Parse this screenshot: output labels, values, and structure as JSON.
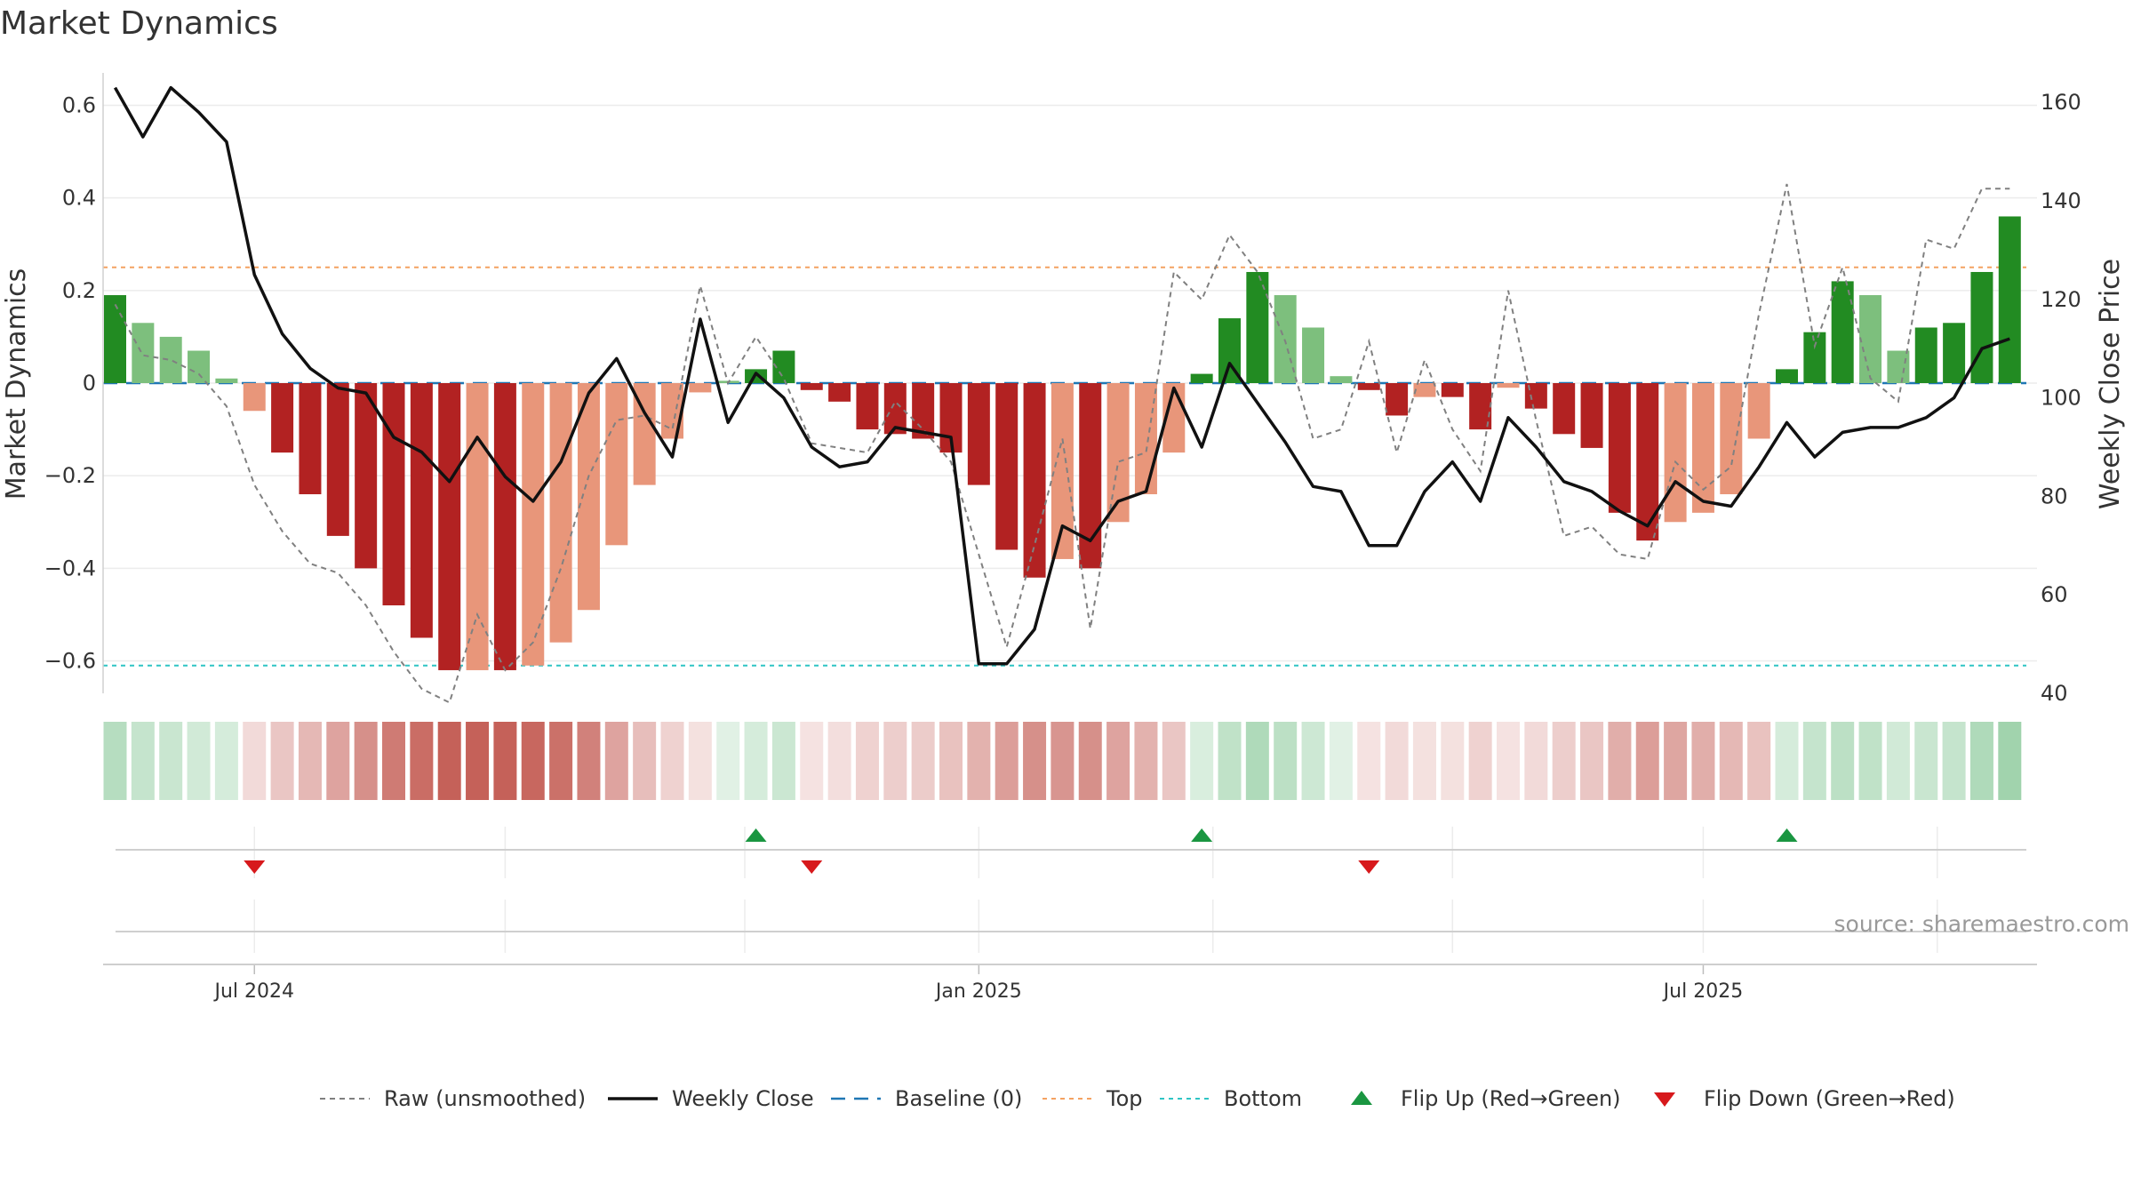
{
  "title": "Market Dynamics",
  "source": "source: sharemaestro.com",
  "colors": {
    "strong_green": "#228b22",
    "light_green": "#7dbf7d",
    "strong_red": "#b22222",
    "light_red": "#e8967a",
    "top_line": "#f4a261",
    "bottom_line": "#2ec4c4",
    "baseline": "#1f77b4",
    "weekly_close": "#111111",
    "raw": "#808080",
    "flip_up": "#1a9641",
    "flip_down": "#d7191c"
  },
  "chart_data": {
    "type": "bar",
    "title": "Market Dynamics",
    "ylabel": "Market Dynamics",
    "y2label": "Weekly Close Price",
    "ylim": [
      -0.67,
      0.67
    ],
    "y2lim": [
      40,
      166
    ],
    "yticks": [
      -0.6,
      -0.4,
      -0.2,
      0,
      0.2,
      0.4,
      0.6
    ],
    "ytick_labels": [
      "−0.6",
      "−0.4",
      "−0.2",
      "0",
      "0.2",
      "0.4",
      "0.6"
    ],
    "y2ticks": [
      40,
      60,
      80,
      100,
      120,
      140,
      160
    ],
    "x_ticks": [
      {
        "week": 5,
        "label": "Jul 2024"
      },
      {
        "week": 31,
        "label": "Jan 2025"
      },
      {
        "week": 57,
        "label": "Jul 2025"
      }
    ],
    "month_grid_weeks": [
      5,
      14,
      22.6,
      31,
      39.4,
      48,
      57,
      65.4
    ],
    "week_count": 69,
    "top": 0.25,
    "bottom": -0.61,
    "baseline": 0,
    "dynamics": [
      0.19,
      0.13,
      0.1,
      0.07,
      0.01,
      -0.06,
      -0.15,
      -0.24,
      -0.33,
      -0.4,
      -0.48,
      -0.55,
      -0.62,
      -0.62,
      -0.62,
      -0.61,
      -0.56,
      -0.49,
      -0.35,
      -0.22,
      -0.12,
      -0.02,
      0.005,
      0.03,
      0.07,
      -0.015,
      -0.04,
      -0.1,
      -0.11,
      -0.12,
      -0.15,
      -0.22,
      -0.36,
      -0.42,
      -0.38,
      -0.4,
      -0.3,
      -0.24,
      -0.15,
      0.02,
      0.14,
      0.24,
      0.19,
      0.12,
      0.015,
      -0.015,
      -0.07,
      -0.03,
      -0.03,
      -0.1,
      -0.01,
      -0.055,
      -0.11,
      -0.14,
      -0.28,
      -0.34,
      -0.3,
      -0.28,
      -0.24,
      -0.12,
      0.03,
      0.11,
      0.22,
      0.19,
      0.07,
      0.12,
      0.13,
      0.24,
      0.36
    ],
    "bar_kind": [
      "strong",
      "light",
      "light",
      "light",
      "light",
      "light",
      "strong",
      "strong",
      "strong",
      "strong",
      "strong",
      "strong",
      "strong",
      "light",
      "strong",
      "light",
      "light",
      "light",
      "light",
      "light",
      "light",
      "light",
      "light",
      "strong",
      "strong",
      "strong",
      "strong",
      "strong",
      "strong",
      "strong",
      "strong",
      "strong",
      "strong",
      "strong",
      "light",
      "strong",
      "light",
      "light",
      "light",
      "strong",
      "strong",
      "strong",
      "light",
      "light",
      "light",
      "strong",
      "strong",
      "light",
      "strong",
      "strong",
      "light",
      "strong",
      "strong",
      "strong",
      "strong",
      "strong",
      "light",
      "light",
      "light",
      "light",
      "strong",
      "strong",
      "strong",
      "light",
      "light",
      "strong",
      "strong",
      "strong",
      "strong"
    ],
    "raw": [
      0.17,
      0.06,
      0.05,
      0.02,
      -0.05,
      -0.22,
      -0.32,
      -0.39,
      -0.41,
      -0.48,
      -0.58,
      -0.66,
      -0.69,
      -0.5,
      -0.62,
      -0.56,
      -0.4,
      -0.2,
      -0.08,
      -0.07,
      -0.1,
      0.21,
      0.0,
      0.1,
      0.01,
      -0.13,
      -0.14,
      -0.15,
      -0.04,
      -0.1,
      -0.17,
      -0.37,
      -0.57,
      -0.35,
      -0.12,
      -0.53,
      -0.17,
      -0.15,
      0.24,
      0.18,
      0.32,
      0.24,
      0.09,
      -0.12,
      -0.1,
      0.09,
      -0.15,
      0.05,
      -0.1,
      -0.19,
      0.2,
      -0.08,
      -0.33,
      -0.31,
      -0.37,
      -0.38,
      -0.17,
      -0.23,
      -0.18,
      0.15,
      0.43,
      0.08,
      0.25,
      0.01,
      -0.04,
      0.31,
      0.29,
      0.42,
      0.42
    ],
    "weekly_close": [
      163,
      153,
      163,
      158,
      152,
      125,
      113,
      106,
      102,
      101,
      92,
      89,
      83,
      92,
      84,
      79,
      87,
      101,
      108,
      97,
      88,
      116,
      95,
      105,
      100,
      90,
      86,
      87,
      94,
      93,
      92,
      46,
      46,
      53,
      74,
      71,
      79,
      81,
      102,
      90,
      107,
      99,
      91,
      82,
      81,
      70,
      70,
      81,
      87,
      79,
      96,
      90,
      83,
      81,
      77,
      74,
      83,
      79,
      78,
      86,
      95,
      88,
      93,
      94,
      94,
      96,
      100,
      110,
      112
    ],
    "heat_intensity": [
      0.35,
      0.28,
      0.26,
      0.22,
      0.2,
      0.18,
      0.28,
      0.35,
      0.45,
      0.55,
      0.65,
      0.72,
      0.78,
      0.78,
      0.78,
      0.75,
      0.7,
      0.62,
      0.45,
      0.32,
      0.22,
      0.15,
      0.14,
      0.2,
      0.25,
      0.14,
      0.16,
      0.22,
      0.24,
      0.25,
      0.3,
      0.38,
      0.48,
      0.55,
      0.52,
      0.55,
      0.45,
      0.38,
      0.28,
      0.18,
      0.3,
      0.38,
      0.32,
      0.24,
      0.14,
      0.14,
      0.18,
      0.15,
      0.15,
      0.22,
      0.14,
      0.18,
      0.24,
      0.28,
      0.4,
      0.48,
      0.44,
      0.4,
      0.35,
      0.3,
      0.2,
      0.28,
      0.32,
      0.3,
      0.22,
      0.26,
      0.28,
      0.38,
      0.45
    ],
    "flip_up_weeks": [
      23,
      39,
      60
    ],
    "flip_down_weeks": [
      5,
      25,
      45
    ],
    "legend": [
      {
        "label": "Raw (unsmoothed)",
        "style": "raw"
      },
      {
        "label": "Weekly Close",
        "style": "close"
      },
      {
        "label": "Baseline (0)",
        "style": "baseline"
      },
      {
        "label": "Top",
        "style": "top"
      },
      {
        "label": "Bottom",
        "style": "bottom"
      },
      {
        "label": "Flip Up (Red→Green)",
        "style": "flip-up"
      },
      {
        "label": "Flip Down (Green→Red)",
        "style": "flip-down"
      }
    ]
  }
}
